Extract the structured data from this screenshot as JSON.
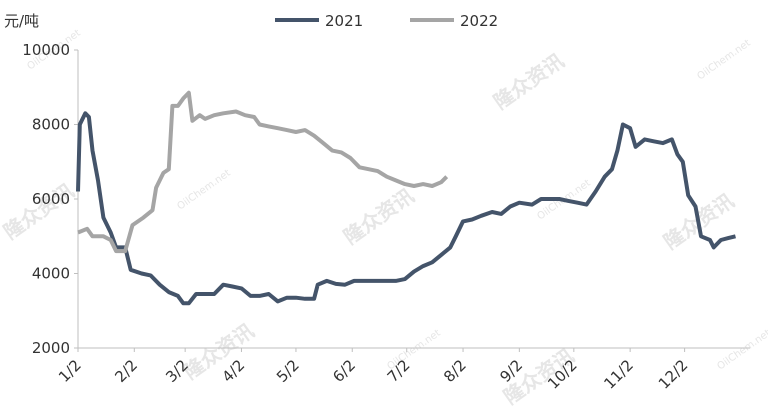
{
  "chart_data": {
    "type": "line",
    "y_label": "元/吨",
    "watermark": {
      "cn": "隆众资讯",
      "en": "OilChem.net"
    },
    "legend": "top",
    "grid": false,
    "xlim": [
      0,
      370
    ],
    "xticks": [
      {
        "value": 0,
        "label": "1/2"
      },
      {
        "value": 31,
        "label": "2/2"
      },
      {
        "value": 59,
        "label": "3/2"
      },
      {
        "value": 90,
        "label": "4/2"
      },
      {
        "value": 120,
        "label": "5/2"
      },
      {
        "value": 151,
        "label": "6/2"
      },
      {
        "value": 181,
        "label": "7/2"
      },
      {
        "value": 212,
        "label": "8/2"
      },
      {
        "value": 243,
        "label": "9/2"
      },
      {
        "value": 273,
        "label": "10/2"
      },
      {
        "value": 304,
        "label": "11/2"
      },
      {
        "value": 334,
        "label": "12/2"
      }
    ],
    "ylim": [
      2000,
      10000
    ],
    "yticks": [
      2000,
      4000,
      6000,
      8000,
      10000
    ],
    "series": [
      {
        "name": "2021",
        "color": "#44546a",
        "x": [
          0,
          1,
          4,
          6,
          8,
          11,
          14,
          18,
          21,
          26,
          29,
          35,
          40,
          45,
          50,
          55,
          58,
          61,
          65,
          70,
          75,
          80,
          85,
          90,
          95,
          100,
          105,
          110,
          115,
          120,
          125,
          130,
          132,
          137,
          142,
          147,
          152,
          157,
          162,
          170,
          175,
          180,
          185,
          190,
          195,
          200,
          205,
          208,
          212,
          217,
          222,
          228,
          233,
          238,
          243,
          250,
          255,
          260,
          265,
          270,
          275,
          280,
          285,
          290,
          294,
          297,
          300,
          304,
          307,
          312,
          317,
          322,
          327,
          330,
          333,
          336,
          340,
          343,
          348,
          350,
          354,
          358,
          362
        ],
        "values": [
          6200,
          8000,
          8300,
          8200,
          7300,
          6500,
          5500,
          5100,
          4700,
          4700,
          4100,
          4000,
          3950,
          3700,
          3500,
          3400,
          3200,
          3200,
          3450,
          3450,
          3450,
          3700,
          3650,
          3600,
          3400,
          3400,
          3450,
          3250,
          3350,
          3350,
          3320,
          3320,
          3700,
          3800,
          3720,
          3700,
          3800,
          3800,
          3800,
          3800,
          3800,
          3850,
          4050,
          4200,
          4300,
          4500,
          4700,
          5000,
          5400,
          5450,
          5550,
          5650,
          5600,
          5800,
          5900,
          5850,
          6000,
          6000,
          6000,
          5950,
          5900,
          5850,
          6200,
          6600,
          6800,
          7300,
          8000,
          7900,
          7400,
          7600,
          7550,
          7500,
          7600,
          7200,
          7000,
          6100,
          5800,
          5000,
          4900,
          4700,
          4900,
          4950,
          5000
        ]
      },
      {
        "name": "2022",
        "color": "#a5a5a5",
        "x": [
          0,
          5,
          8,
          14,
          18,
          21,
          26,
          30,
          36,
          41,
          43,
          47,
          50,
          52,
          55,
          58,
          61,
          63,
          67,
          70,
          75,
          80,
          87,
          92,
          97,
          100,
          105,
          110,
          115,
          120,
          125,
          130,
          135,
          140,
          145,
          150,
          155,
          160,
          165,
          170,
          175,
          180,
          185,
          190,
          195,
          200,
          203
        ],
        "values": [
          5100,
          5200,
          5000,
          5000,
          4900,
          4600,
          4600,
          5300,
          5500,
          5700,
          6300,
          6700,
          6800,
          8500,
          8500,
          8700,
          8850,
          8100,
          8250,
          8150,
          8250,
          8300,
          8350,
          8250,
          8200,
          8000,
          7950,
          7900,
          7850,
          7800,
          7850,
          7700,
          7500,
          7300,
          7250,
          7100,
          6850,
          6800,
          6750,
          6600,
          6500,
          6400,
          6350,
          6400,
          6350,
          6450,
          6600
        ]
      }
    ]
  }
}
